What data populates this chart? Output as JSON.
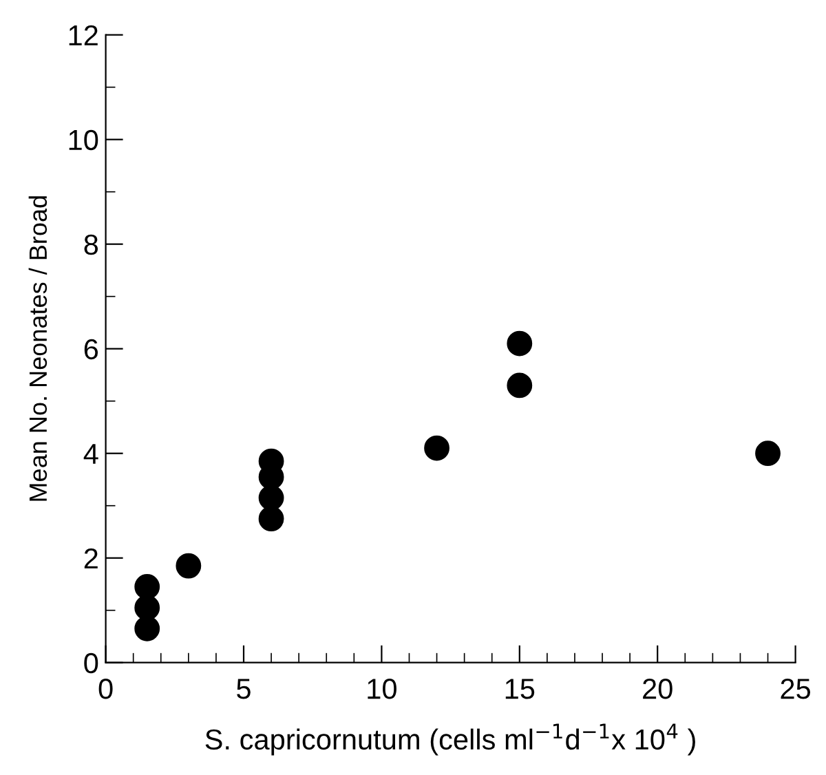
{
  "chart_data": {
    "type": "scatter",
    "xlabel": "S. capricornutum (cells ml$^{−1}$d$^{−1}$x 10$^{4}$ )",
    "ylabel": "Mean No. Neonates / Broad",
    "x": [
      1.5,
      1.5,
      1.5,
      3,
      6,
      6,
      6,
      6,
      12,
      15,
      15,
      24
    ],
    "series": [
      {
        "color": "#000000",
        "values": [
          1.45,
          1.05,
          0.65,
          1.85,
          3.85,
          3.55,
          3.15,
          2.75,
          4.1,
          6.1,
          5.3,
          4.0
        ]
      }
    ],
    "marker": "circle",
    "xlim": [
      0,
      25
    ],
    "ylim": [
      0,
      12
    ],
    "xticks": [
      0,
      {
        "value": 1,
        "label": null
      },
      {
        "value": 2,
        "label": null
      },
      {
        "value": 3,
        "label": null
      },
      {
        "value": 4,
        "label": null
      },
      5,
      {
        "value": 6,
        "label": null
      },
      {
        "value": 7,
        "label": null
      },
      {
        "value": 8,
        "label": null
      },
      {
        "value": 9,
        "label": null
      },
      10,
      {
        "value": 11,
        "label": null
      },
      {
        "value": 12,
        "label": null
      },
      {
        "value": 13,
        "label": null
      },
      {
        "value": 14,
        "label": null
      },
      15,
      {
        "value": 16,
        "label": null
      },
      {
        "value": 17,
        "label": null
      },
      {
        "value": 18,
        "label": null
      },
      {
        "value": 19,
        "label": null
      },
      20,
      {
        "value": 21,
        "label": null
      },
      {
        "value": 22,
        "label": null
      },
      {
        "value": 23,
        "label": null
      },
      {
        "value": 24,
        "label": null
      },
      25
    ],
    "yticks": [
      0,
      {
        "value": 1,
        "label": null
      },
      2,
      {
        "value": 3,
        "label": null
      },
      4,
      {
        "value": 5,
        "label": null
      },
      6,
      {
        "value": 7,
        "label": null
      },
      8,
      {
        "value": 9,
        "label": null
      },
      10,
      {
        "value": 11,
        "label": null
      },
      12
    ],
    "grid": false
  }
}
